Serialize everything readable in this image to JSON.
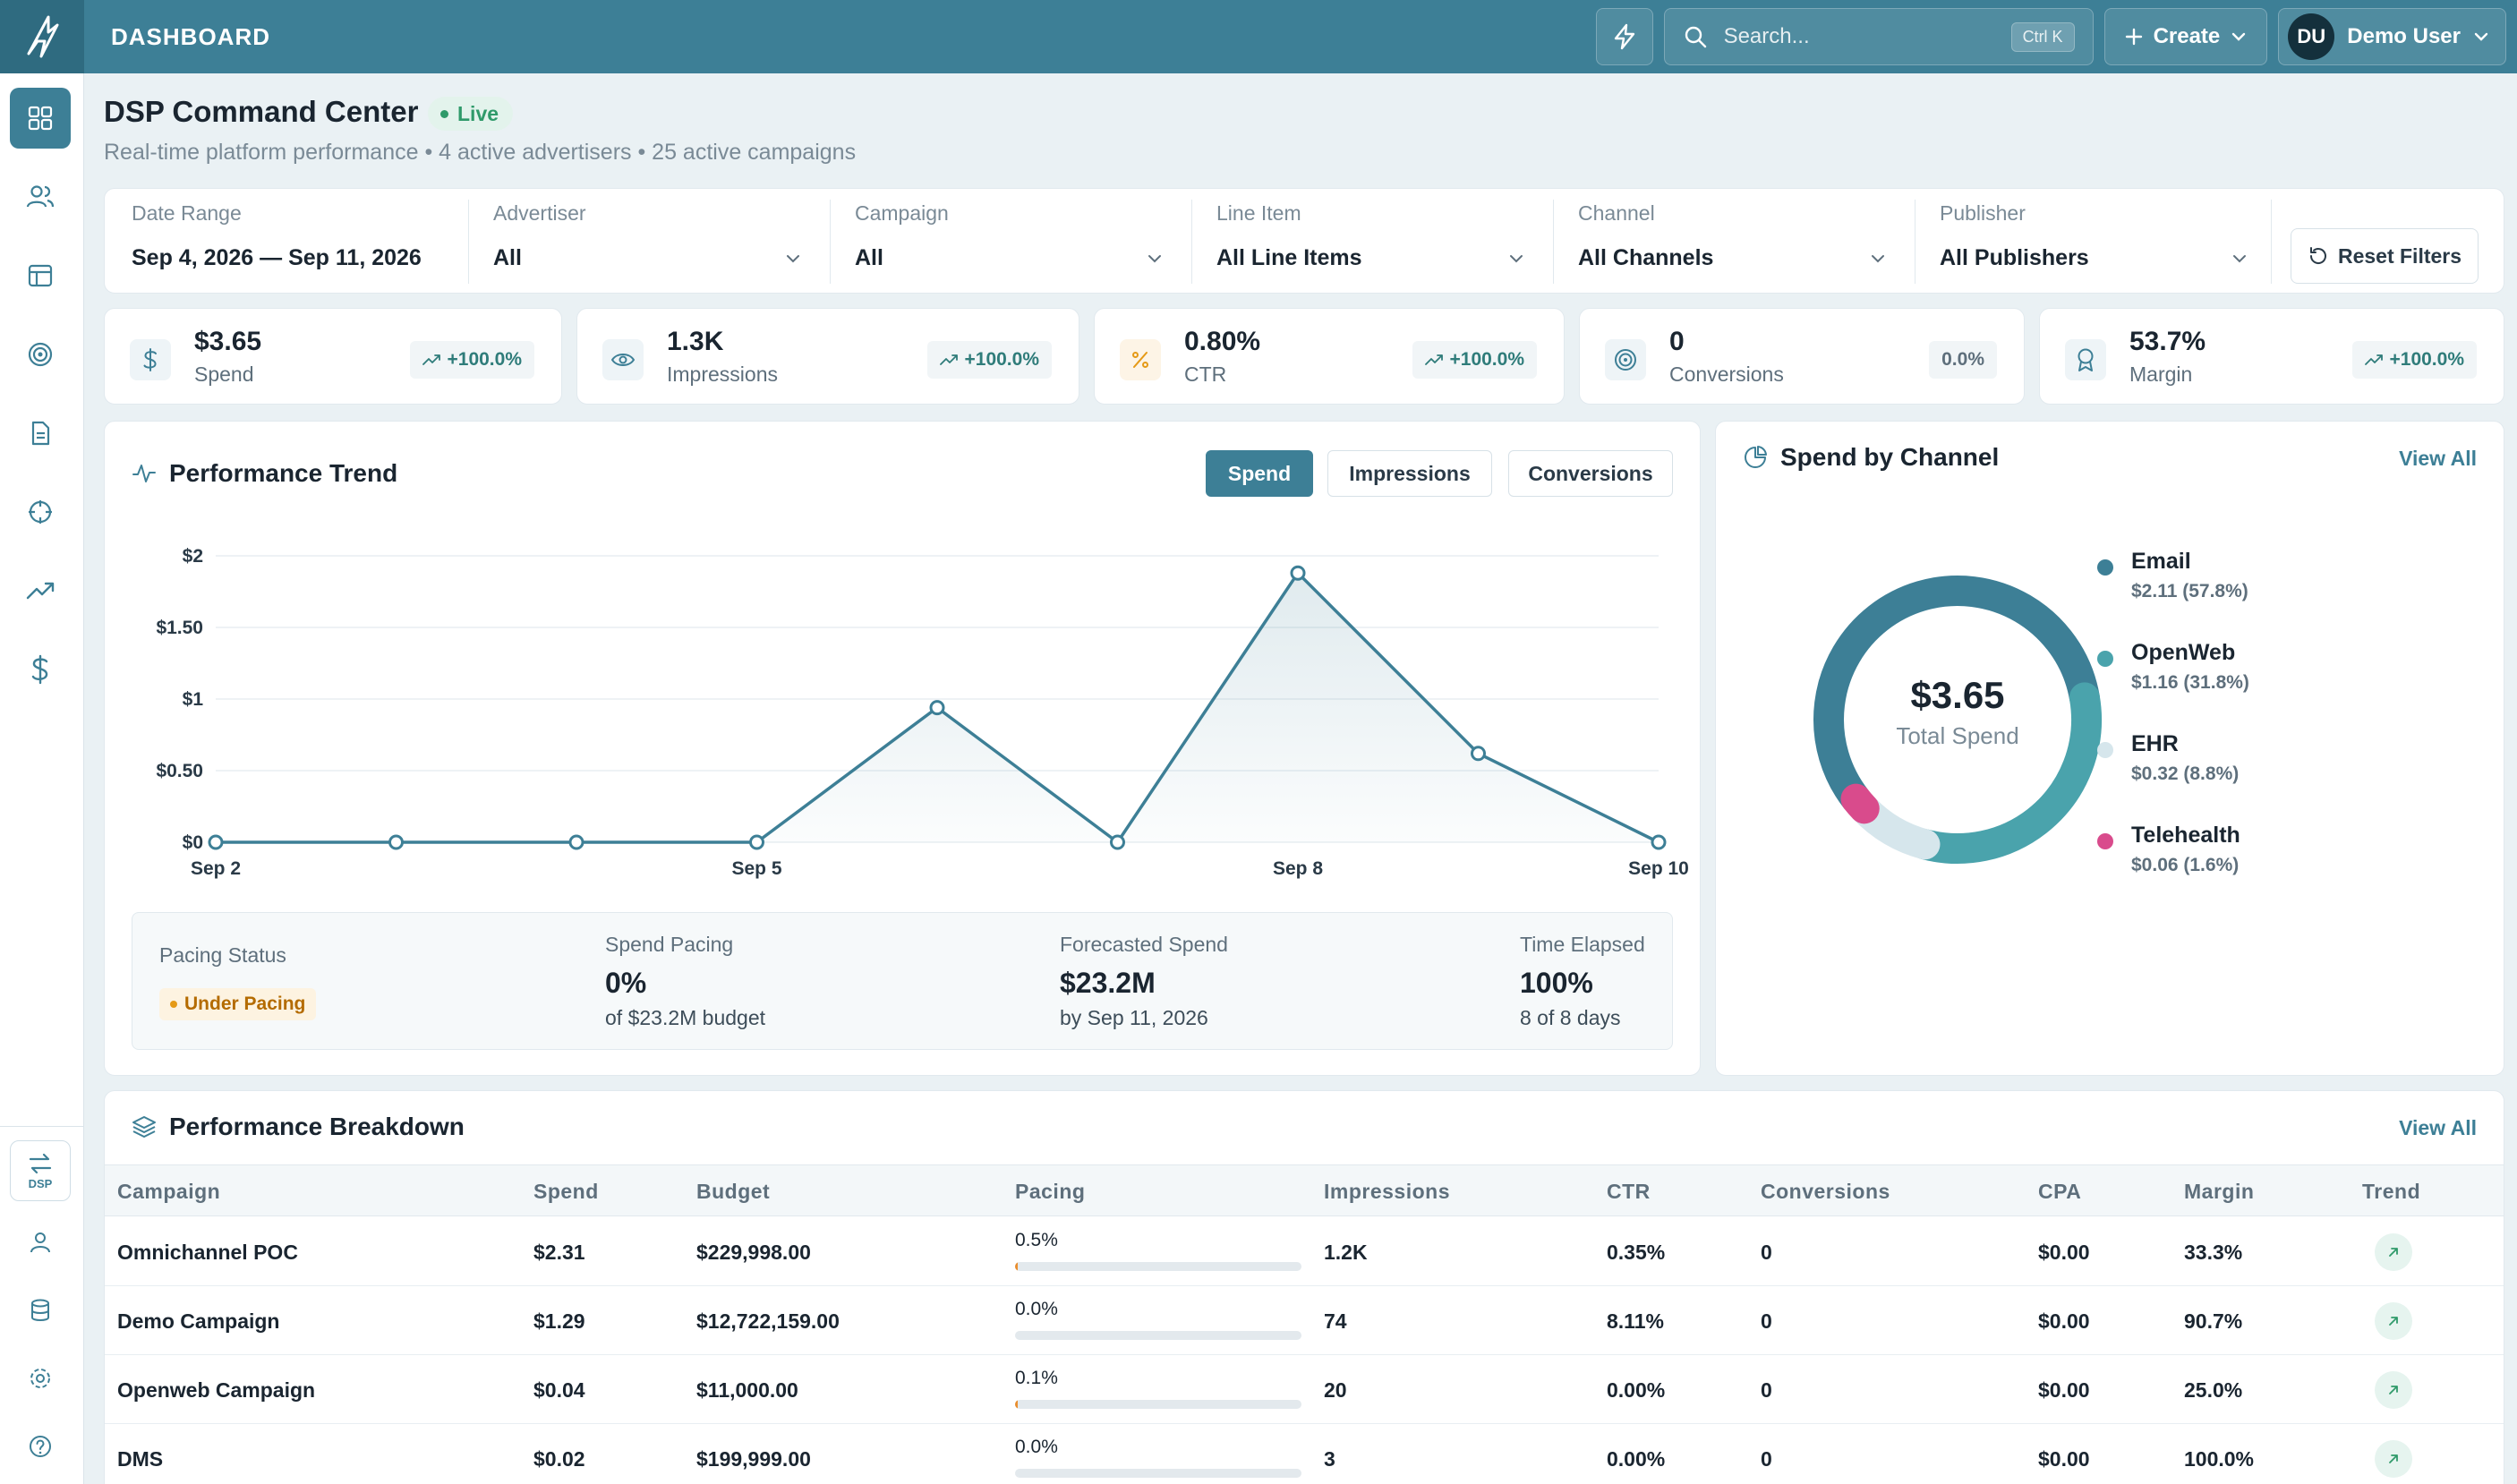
{
  "app": {
    "title": "DASHBOARD"
  },
  "topbar": {
    "search_placeholder": "Search...",
    "search_shortcut": "Ctrl K",
    "create_label": "Create",
    "user_initials": "DU",
    "user_name": "Demo User"
  },
  "sidebar": {
    "items": [
      "dashboard-icon",
      "users-icon",
      "layout-icon",
      "target-icon",
      "document-icon",
      "crosshair-icon",
      "trending-icon",
      "dollar-icon"
    ],
    "switch_label": "DSP",
    "bottom_items": [
      "user-icon",
      "database-icon",
      "settings-icon",
      "help-icon"
    ]
  },
  "header": {
    "title": "DSP Command Center",
    "live": "Live",
    "subtitle": "Real-time platform performance • 4 active advertisers • 25 active campaigns"
  },
  "filters": {
    "items": [
      {
        "label": "Date Range",
        "value": "Sep 4, 2026 — Sep 11, 2026"
      },
      {
        "label": "Advertiser",
        "value": "All"
      },
      {
        "label": "Campaign",
        "value": "All"
      },
      {
        "label": "Line Item",
        "value": "All Line Items"
      },
      {
        "label": "Channel",
        "value": "All Channels"
      },
      {
        "label": "Publisher",
        "value": "All Publishers"
      }
    ],
    "reset_label": "Reset Filters"
  },
  "kpis": [
    {
      "value": "$3.65",
      "label": "Spend",
      "delta": "+100.0%",
      "icon": "dollar-icon"
    },
    {
      "value": "1.3K",
      "label": "Impressions",
      "delta": "+100.0%",
      "icon": "eye-icon"
    },
    {
      "value": "0.80%",
      "label": "CTR",
      "delta": "+100.0%",
      "icon": "percent-icon"
    },
    {
      "value": "0",
      "label": "Conversions",
      "delta": "0.0%",
      "icon": "target-icon"
    },
    {
      "value": "53.7%",
      "label": "Margin",
      "delta": "+100.0%",
      "icon": "award-icon"
    }
  ],
  "trend": {
    "title": "Performance Trend",
    "tabs": [
      "Spend",
      "Impressions",
      "Conversions"
    ],
    "active_tab": "Spend"
  },
  "chart_data": {
    "type": "area",
    "x": [
      "Sep 2",
      "Sep 3",
      "Sep 4",
      "Sep 5",
      "Sep 6",
      "Sep 7",
      "Sep 8",
      "Sep 9",
      "Sep 10"
    ],
    "x_tick_labels": [
      "Sep 2",
      "Sep 5",
      "Sep 8",
      "Sep 10"
    ],
    "series": [
      {
        "values": [
          0,
          0,
          0,
          0,
          0.94,
          0,
          1.88,
          0.62,
          0
        ]
      }
    ],
    "y_ticks": [
      "$0",
      "$0.50",
      "$1",
      "$1.50",
      "$2"
    ],
    "ylim": [
      0,
      2
    ],
    "grid": true,
    "color": "#3d7f96"
  },
  "pacing": {
    "status_label": "Pacing Status",
    "status": "Under Pacing",
    "spend_pacing_label": "Spend Pacing",
    "spend_pacing_value": "0%",
    "spend_pacing_sub": "of $23.2M budget",
    "forecast_label": "Forecasted Spend",
    "forecast_value": "$23.2M",
    "forecast_sub": "by Sep 11, 2026",
    "time_label": "Time Elapsed",
    "time_value": "100%",
    "time_sub": "8 of 8 days"
  },
  "channel": {
    "title": "Spend by Channel",
    "view_all": "View All",
    "total_value": "$3.65",
    "total_label": "Total Spend",
    "items": [
      {
        "name": "Email",
        "value": "$2.11 (57.8%)",
        "share": 57.8,
        "color": "#3d7f96"
      },
      {
        "name": "OpenWeb",
        "value": "$1.16 (31.8%)",
        "share": 31.8,
        "color": "#4aa3ac"
      },
      {
        "name": "EHR",
        "value": "$0.32 (8.8%)",
        "share": 8.8,
        "color": "#d6e6ec"
      },
      {
        "name": "Telehealth",
        "value": "$0.06 (1.6%)",
        "share": 1.6,
        "color": "#d94b8c"
      }
    ]
  },
  "breakdown": {
    "title": "Performance Breakdown",
    "view_all": "View All",
    "columns": [
      "Campaign",
      "Spend",
      "Budget",
      "Pacing",
      "Impressions",
      "CTR",
      "Conversions",
      "CPA",
      "Margin",
      "Trend"
    ],
    "rows": [
      {
        "campaign": "Omnichannel POC",
        "spend": "$2.31",
        "budget": "$229,998.00",
        "pacing": "0.5%",
        "pacing_value": 0.5,
        "impressions": "1.2K",
        "ctr": "0.35%",
        "conversions": "0",
        "cpa": "$0.00",
        "margin": "33.3%"
      },
      {
        "campaign": "Demo Campaign",
        "spend": "$1.29",
        "budget": "$12,722,159.00",
        "pacing": "0.0%",
        "pacing_value": 0.0,
        "impressions": "74",
        "ctr": "8.11%",
        "conversions": "0",
        "cpa": "$0.00",
        "margin": "90.7%"
      },
      {
        "campaign": "Openweb Campaign",
        "spend": "$0.04",
        "budget": "$11,000.00",
        "pacing": "0.1%",
        "pacing_value": 0.1,
        "impressions": "20",
        "ctr": "0.00%",
        "conversions": "0",
        "cpa": "$0.00",
        "margin": "25.0%"
      },
      {
        "campaign": "DMS",
        "spend": "$0.02",
        "budget": "$199,999.00",
        "pacing": "0.0%",
        "pacing_value": 0.0,
        "impressions": "3",
        "ctr": "0.00%",
        "conversions": "0",
        "cpa": "$0.00",
        "margin": "100.0%"
      }
    ]
  }
}
